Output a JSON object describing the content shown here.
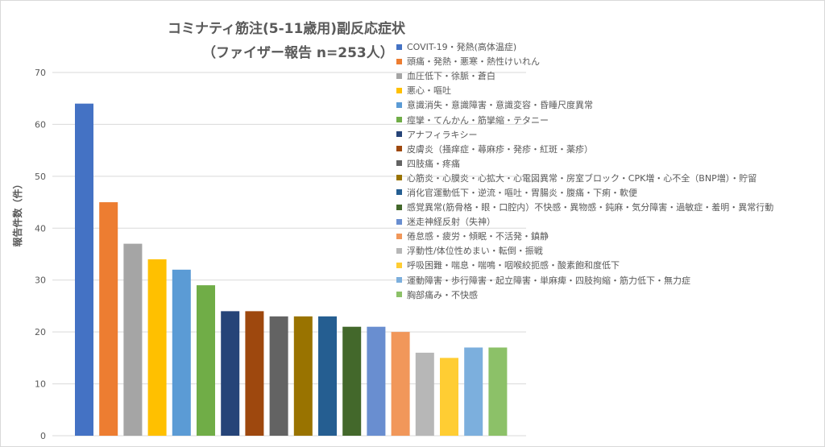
{
  "chart_data": {
    "type": "bar",
    "title_lines": [
      "コミナティ筋注(5-11歳用)副反応症状",
      "（ファイザー報告 n=253人）"
    ],
    "ylabel": "報告件数（件）",
    "ylim": [
      0,
      70
    ],
    "yticks": [
      "0",
      "10",
      "20",
      "30",
      "40",
      "50",
      "60",
      "70"
    ],
    "grid": true,
    "legend_position": "right",
    "series": [
      {
        "name": "COVIT-19・発熱(高体温症)",
        "value": 64,
        "color": "#4472C4"
      },
      {
        "name": "頭痛・発熱・悪寒・熱性けいれん",
        "value": 45,
        "color": "#ED7D31"
      },
      {
        "name": "血圧低下・徐脈・蒼白",
        "value": 37,
        "color": "#A5A5A5"
      },
      {
        "name": "悪心・嘔吐",
        "value": 34,
        "color": "#FFC000"
      },
      {
        "name": "意識消失・意識障害・意識変容・昏睡尺度異常",
        "value": 32,
        "color": "#5B9BD5"
      },
      {
        "name": "痙攣・てんかん・筋攣縮・テタニー",
        "value": 29,
        "color": "#70AD47"
      },
      {
        "name": "アナフィラキシー",
        "value": 24,
        "color": "#264478"
      },
      {
        "name": "皮膚炎（掻痒症・蕁麻疹・発疹・紅斑・薬疹）",
        "value": 24,
        "color": "#9E480E"
      },
      {
        "name": "四肢痛・疼痛",
        "value": 23,
        "color": "#636363"
      },
      {
        "name": "心筋炎・心膜炎・心拡大・心電図異常・房室ブロック・CPK増・心不全（BNP増）・貯留",
        "value": 23,
        "color": "#997300"
      },
      {
        "name": "消化官運動低下・逆流・嘔吐・胃腸炎・腹痛・下痢・軟便",
        "value": 23,
        "color": "#255E91"
      },
      {
        "name": "感覚異常(筋骨格・眼・口腔内）不快感・異物感・鈍麻・気分障害・過敏症・羞明・異常行動",
        "value": 21,
        "color": "#43682B"
      },
      {
        "name": "迷走神経反射（失神）",
        "value": 21,
        "color": "#698ED0"
      },
      {
        "name": "倦怠感・疲労・傾眠・不活発・鎮静",
        "value": 20,
        "color": "#F1975A"
      },
      {
        "name": "浮動性/体位性めまい・転倒・振戦",
        "value": 16,
        "color": "#B7B7B7"
      },
      {
        "name": "呼吸困難・喘息・喘鳴・咽喉絞扼感・酸素飽和度低下",
        "value": 15,
        "color": "#FFCD33"
      },
      {
        "name": "運動障害・歩行障害・起立障害・単麻痺・四肢拘縮・筋力低下・無力症",
        "value": 17,
        "color": "#7CAFDD"
      },
      {
        "name": "胸部痛み・不快感",
        "value": 17,
        "color": "#8CC168"
      }
    ]
  }
}
